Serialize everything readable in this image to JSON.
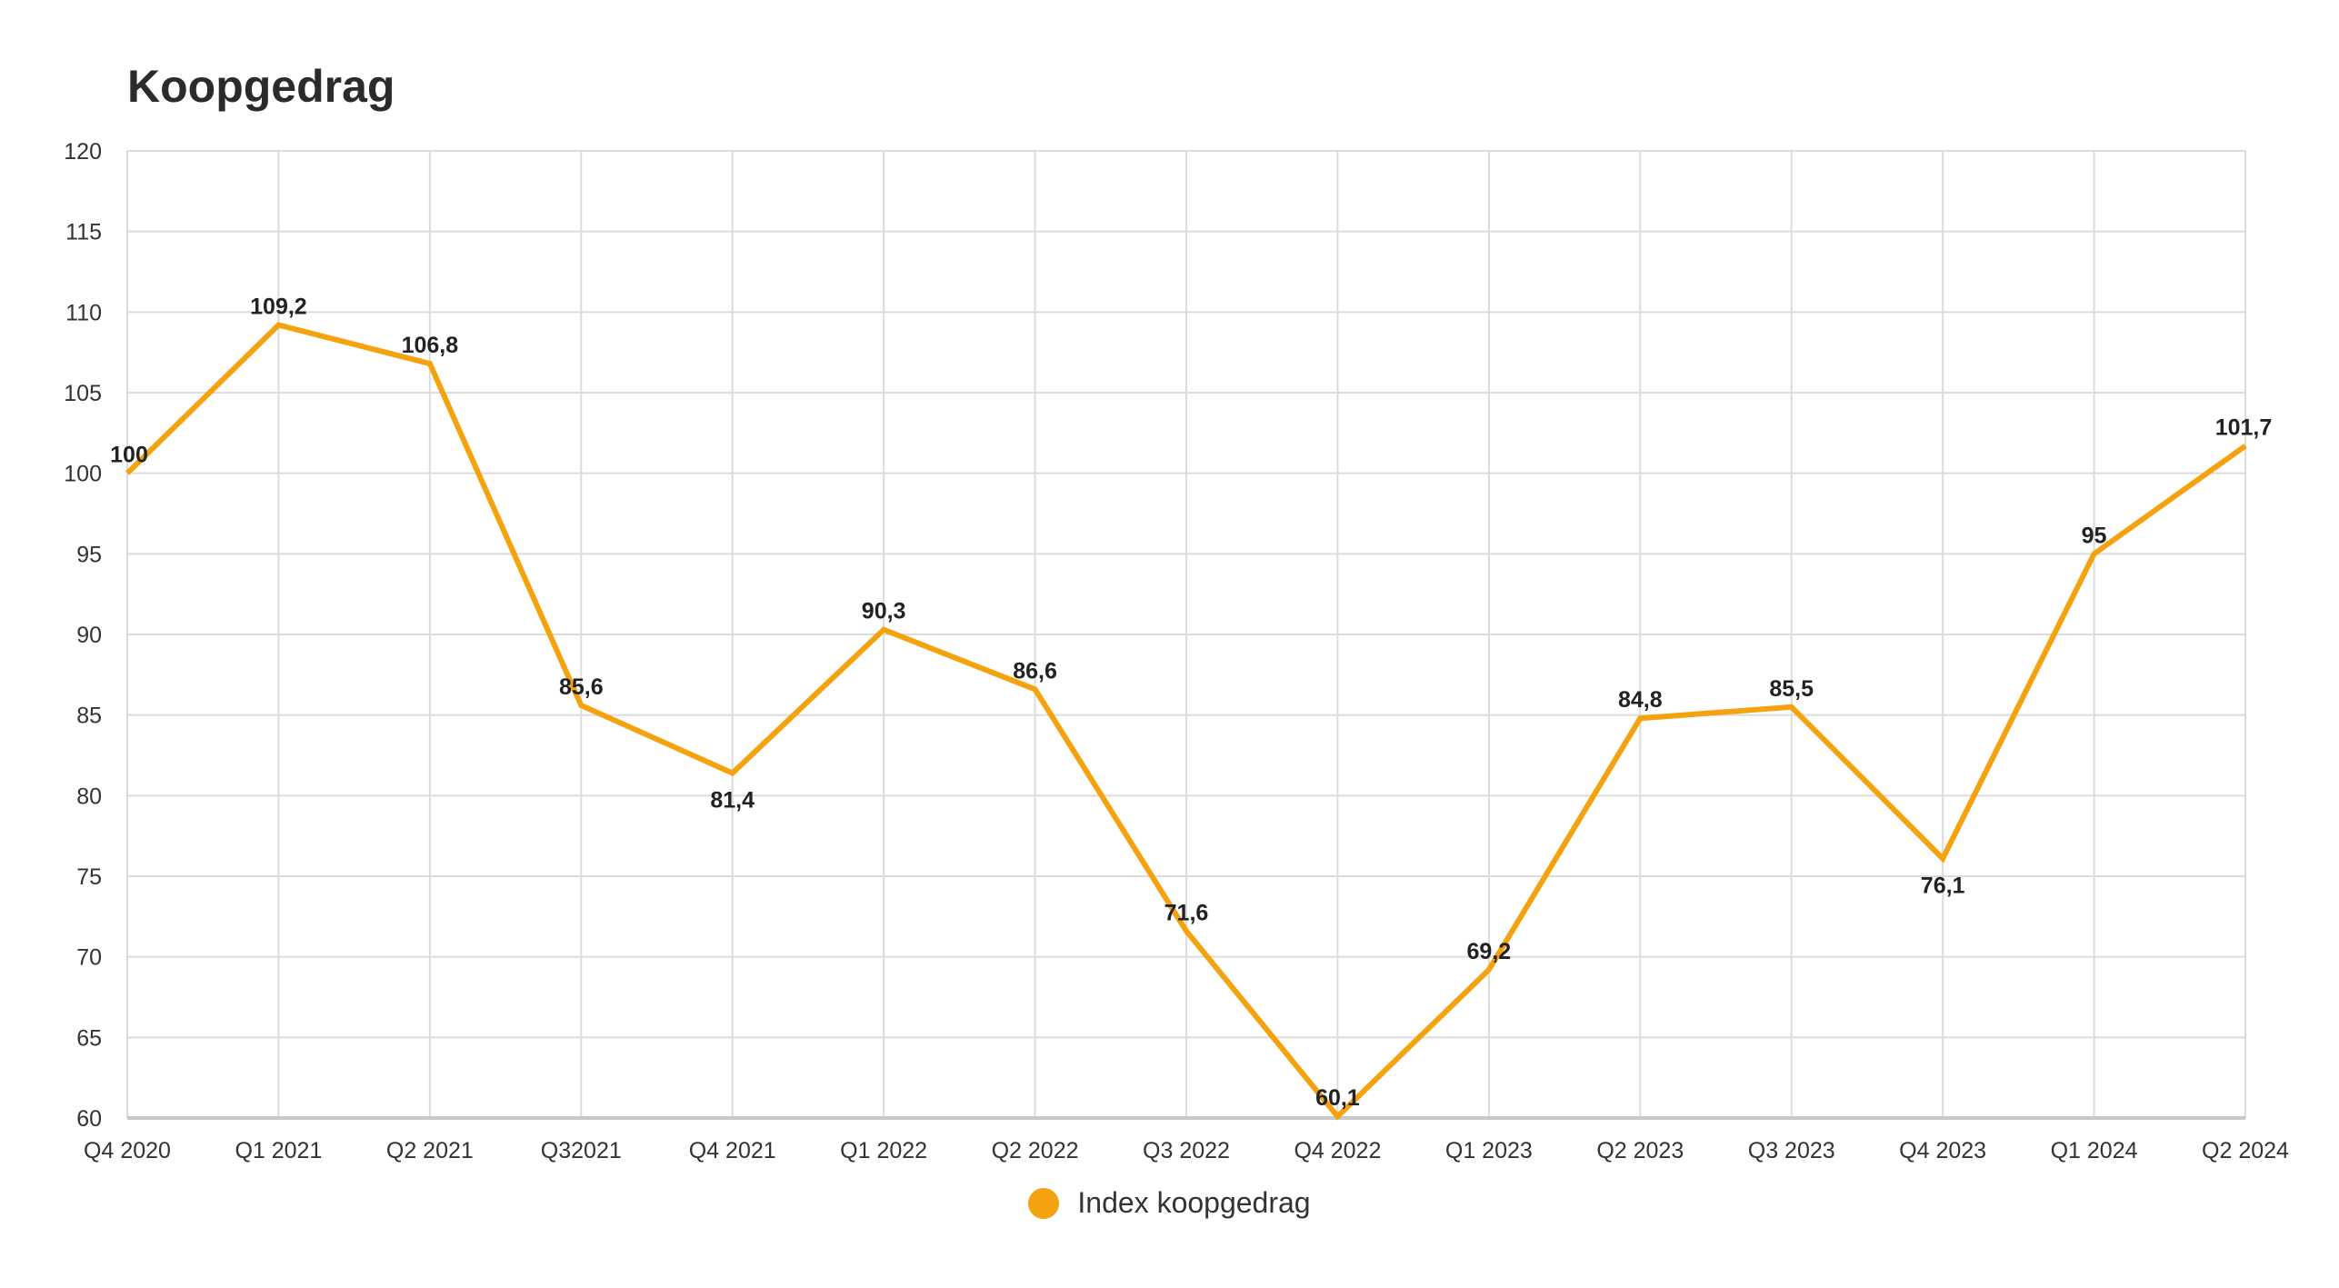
{
  "chart_data": {
    "type": "line",
    "title": "Koopgedrag",
    "xlabel": "",
    "ylabel": "",
    "ylim": [
      60,
      120
    ],
    "y_ticks": [
      "60",
      "65",
      "70",
      "75",
      "80",
      "85",
      "90",
      "95",
      "100",
      "105",
      "110",
      "115",
      "120"
    ],
    "categories": [
      "Q4 2020",
      "Q1 2021",
      "Q2 2021",
      "Q32021",
      "Q4 2021",
      "Q1 2022",
      "Q2 2022",
      "Q3 2022",
      "Q4 2022",
      "Q1 2023",
      "Q2 2023",
      "Q3 2023",
      "Q4 2023",
      "Q1 2024",
      "Q2 2024"
    ],
    "series": [
      {
        "name": "Index koopgedrag",
        "color": "#F4A20D",
        "values": [
          100,
          109.2,
          106.8,
          85.6,
          81.4,
          90.3,
          86.6,
          71.6,
          60.1,
          69.2,
          84.8,
          85.5,
          76.1,
          95,
          101.7
        ],
        "labels": [
          "100",
          "109,2",
          "106,8",
          "85,6",
          "81,4",
          "90,3",
          "86,6",
          "71,6",
          "60,1",
          "69,2",
          "84,8",
          "85,5",
          "76,1",
          "95",
          "101,7"
        ]
      }
    ],
    "grid": true,
    "legend": "bottom-center"
  }
}
